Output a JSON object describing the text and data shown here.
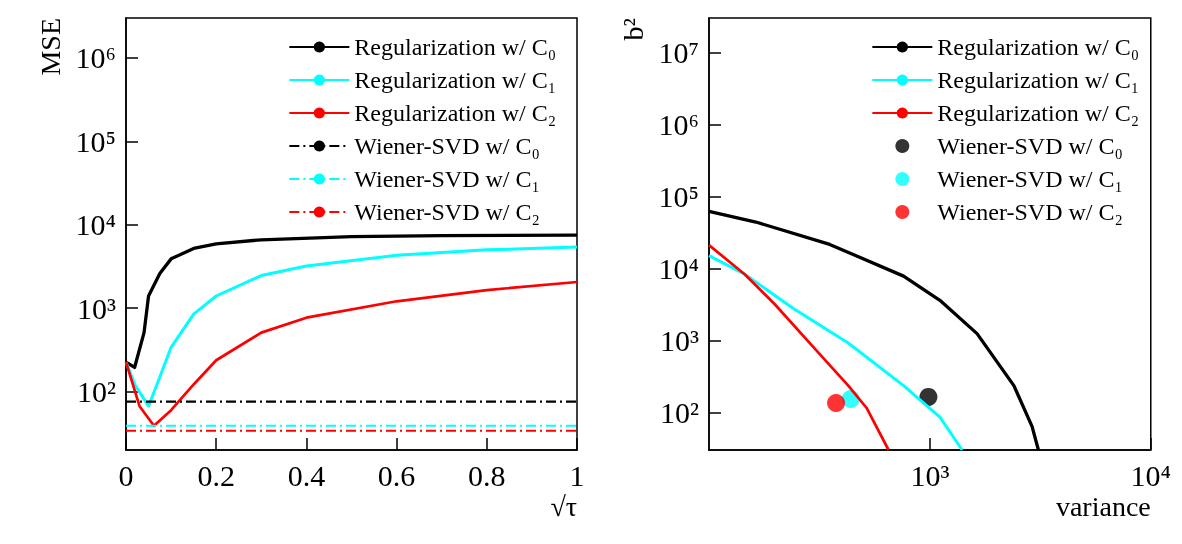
{
  "chart_data": [
    {
      "type": "line",
      "xlabel": "√τ",
      "ylabel": "MSE",
      "log": "y",
      "legend": "top right",
      "xlim": [
        0,
        1
      ],
      "xticks": [
        0,
        0.2,
        0.4,
        0.6,
        0.8,
        1
      ],
      "ylim": [
        20,
        3000000
      ],
      "yticks": [
        {
          "value": 100,
          "label": "10²"
        },
        {
          "value": 1000,
          "label": "10³"
        },
        {
          "value": 10000,
          "label": "10⁴"
        },
        {
          "value": 100000,
          "label": "10⁵"
        },
        {
          "value": 1000000,
          "label": "10⁶"
        }
      ],
      "series": [
        {
          "name": "Regularization w/ C₀",
          "color": "#000000",
          "x": [
            0,
            0.019,
            0.04,
            0.05,
            0.075,
            0.1,
            0.15,
            0.2,
            0.3,
            0.5,
            0.7,
            1
          ],
          "values": [
            226,
            195,
            510,
            1400,
            2600,
            3900,
            5200,
            5900,
            6600,
            7200,
            7400,
            7500
          ]
        },
        {
          "name": "Regularization w/ C₁",
          "color": "#00ffff",
          "x": [
            0,
            0.02,
            0.05,
            0.075,
            0.1,
            0.15,
            0.2,
            0.3,
            0.4,
            0.6,
            0.8,
            1
          ],
          "values": [
            226,
            120,
            67,
            150,
            340,
            850,
            1400,
            2460,
            3200,
            4300,
            5000,
            5400
          ]
        },
        {
          "name": "Regularization w/ C₂",
          "color": "#ff0000",
          "x": [
            0,
            0.03,
            0.062,
            0.1,
            0.15,
            0.2,
            0.3,
            0.4,
            0.6,
            0.8,
            1
          ],
          "values": [
            226,
            67,
            39,
            60,
            122,
            238,
            510,
            770,
            1210,
            1650,
            2060
          ]
        },
        {
          "name": "Wiener-SVD w/ C₀",
          "color": "#000000",
          "line_style": "dashed",
          "x": [
            0,
            1
          ],
          "values": [
            76,
            76
          ]
        },
        {
          "name": "Wiener-SVD w/ C₁",
          "color": "#00ffff",
          "line_style": "dashed",
          "x": [
            0,
            1
          ],
          "values": [
            39,
            39
          ]
        },
        {
          "name": "Wiener-SVD w/ C₂",
          "color": "#ff0000",
          "line_style": "dashed",
          "x": [
            0,
            1
          ],
          "values": [
            34,
            34
          ]
        }
      ]
    },
    {
      "type": "line",
      "xlabel": "variance",
      "ylabel": "b²",
      "log": "xy",
      "legend": "top right",
      "xlim": [
        100,
        10000
      ],
      "xticks": [
        {
          "value": 1000,
          "label": "10³"
        },
        {
          "value": 10000,
          "label": "10⁴"
        }
      ],
      "ylim": [
        30,
        30000000
      ],
      "yticks": [
        {
          "value": 100,
          "label": "10²"
        },
        {
          "value": 1000,
          "label": "10³"
        },
        {
          "value": 10000,
          "label": "10⁴"
        },
        {
          "value": 100000,
          "label": "10⁵"
        },
        {
          "value": 1000000,
          "label": "10⁶"
        },
        {
          "value": 10000000,
          "label": "10⁷"
        }
      ],
      "series": [
        {
          "name": "Regularization w/ C₀",
          "color": "#000000",
          "x": [
            100,
            163,
            352,
            760,
            1110,
            1635,
            2400,
            2900,
            3100
          ],
          "values": [
            62000,
            44000,
            21500,
            7800,
            3600,
            1240,
            235,
            64,
            30
          ]
        },
        {
          "name": "Regularization w/ C₁",
          "color": "#00ffff",
          "x": [
            100,
            145,
            240,
            427,
            760,
            1110,
            1400
          ],
          "values": [
            15000,
            8300,
            2800,
            920,
            235,
            86,
            30
          ]
        },
        {
          "name": "Regularization w/ C₂",
          "color": "#ff0000",
          "x": [
            100,
            145,
            198,
            290,
            427,
            517,
            650
          ],
          "values": [
            21000,
            8300,
            3200,
            870,
            235,
            115,
            30
          ]
        },
        {
          "name": "Wiener-SVD w/ C₀",
          "type": "scatter",
          "marker": "circle",
          "color": "#000000",
          "x": [
            985
          ],
          "values": [
            164
          ]
        },
        {
          "name": "Wiener-SVD w/ C₁",
          "type": "scatter",
          "marker": "circle",
          "color": "#00ffff",
          "x": [
            438
          ],
          "values": [
            153
          ]
        },
        {
          "name": "Wiener-SVD w/ C₂",
          "type": "scatter",
          "marker": "circle",
          "color": "#ff0000",
          "x": [
            376
          ],
          "values": [
            135
          ]
        }
      ]
    }
  ]
}
